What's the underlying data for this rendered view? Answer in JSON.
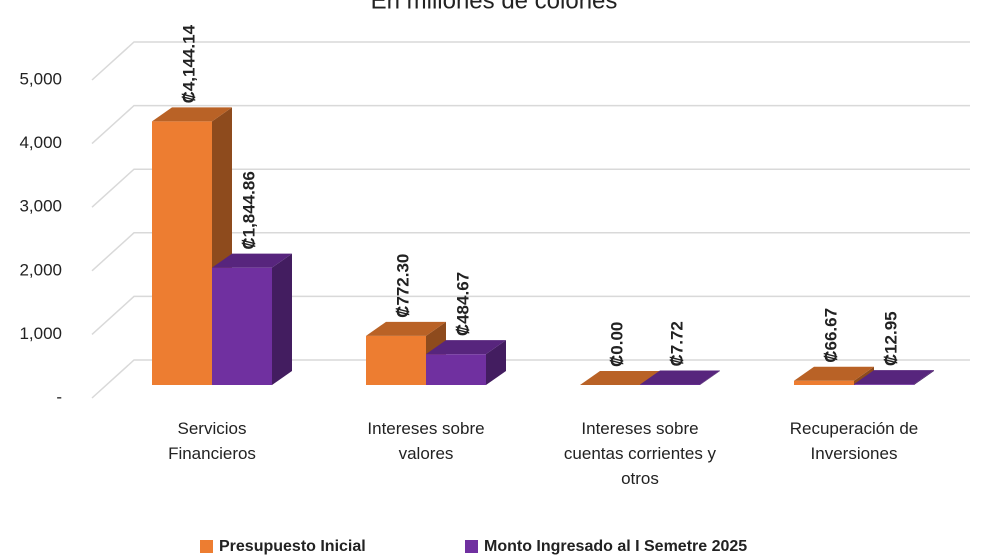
{
  "chart_data": {
    "type": "bar3d",
    "title": "En millones de colones",
    "categories": [
      "Servicios Financieros",
      "Intereses sobre valores",
      "Intereses sobre cuentas corrientes y otros",
      "Recuperación de Inversiones"
    ],
    "series": [
      {
        "name": "Presupuesto Inicial",
        "color": "#ED7D31",
        "values": [
          4144.14,
          772.3,
          0.0,
          66.67
        ],
        "value_labels": [
          "₡4,144.14",
          "₡772.30",
          "₡0.00",
          "₡66.67"
        ]
      },
      {
        "name": "Monto Ingresado al I Semetre 2025",
        "color": "#7030A0",
        "values": [
          1844.86,
          484.67,
          7.72,
          12.95
        ],
        "value_labels": [
          "₡1,844.86",
          "₡484.67",
          "₡7.72",
          "₡12.95"
        ]
      }
    ],
    "ylim": [
      0,
      5000
    ],
    "yticks": [
      {
        "value": 0,
        "label": "-"
      },
      {
        "value": 1000,
        "label": "1,000"
      },
      {
        "value": 2000,
        "label": "2,000"
      },
      {
        "value": 3000,
        "label": "3,000"
      },
      {
        "value": 4000,
        "label": "4,000"
      },
      {
        "value": 5000,
        "label": "5,000"
      }
    ],
    "grid": true
  }
}
